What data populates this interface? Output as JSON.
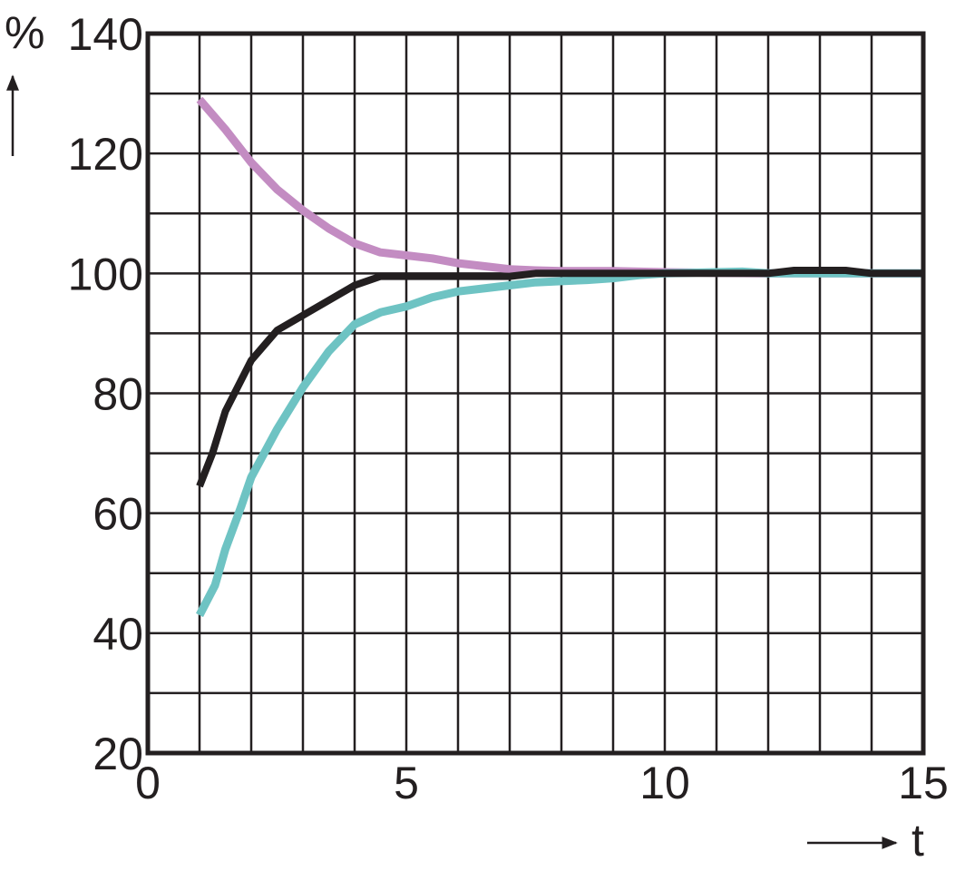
{
  "chart_data": {
    "type": "line",
    "title": "",
    "xlabel": "t",
    "ylabel": "%",
    "xlim": [
      0,
      15
    ],
    "ylim": [
      20,
      140
    ],
    "grid": true,
    "x_ticks": [
      "0",
      "5",
      "10",
      "15"
    ],
    "y_ticks": [
      "20",
      "40",
      "60",
      "80",
      "100",
      "120",
      "140"
    ],
    "series": [
      {
        "color": "#c38cc2",
        "x": [
          1,
          1.5,
          2,
          2.5,
          3,
          3.5,
          4,
          4.5,
          5,
          5.5,
          6,
          6.5,
          7,
          7.5,
          8,
          8.5,
          9,
          9.5,
          10,
          11,
          12,
          13,
          14,
          15
        ],
        "y": [
          129,
          124,
          118.5,
          114,
          110.5,
          107.5,
          105,
          103.5,
          103,
          102.5,
          101.7,
          101.2,
          100.7,
          100.5,
          100.4,
          100.4,
          100.4,
          100.3,
          100.2,
          100.1,
          100,
          100,
          100,
          100
        ]
      },
      {
        "color": "#6ec3c3",
        "x": [
          1,
          1.3,
          1.5,
          1.8,
          2,
          2.5,
          3,
          3.5,
          4,
          4.5,
          5,
          5.5,
          6,
          6.5,
          7,
          7.5,
          8,
          8.5,
          9,
          9.5,
          10,
          11,
          11.5,
          12,
          13,
          14,
          15
        ],
        "y": [
          43,
          48,
          54,
          61,
          66,
          74,
          81,
          87,
          91.5,
          93.5,
          94.5,
          96,
          97,
          97.5,
          98,
          98.5,
          98.7,
          98.9,
          99.2,
          99.7,
          100,
          100.2,
          100.3,
          100,
          100,
          100,
          100
        ]
      },
      {
        "color": "#231f20",
        "x": [
          1,
          1.25,
          1.5,
          2,
          2.5,
          3,
          3.5,
          4,
          4.5,
          5,
          6,
          7,
          7.5,
          8,
          9,
          10,
          11,
          12,
          12.5,
          13,
          13.5,
          14,
          15
        ],
        "y": [
          64.5,
          70,
          77,
          85.5,
          90.5,
          93,
          95.5,
          98,
          99.5,
          99.5,
          99.5,
          99.5,
          100,
          100,
          100,
          100,
          100,
          100,
          100.5,
          100.5,
          100.5,
          100,
          100
        ]
      }
    ]
  }
}
